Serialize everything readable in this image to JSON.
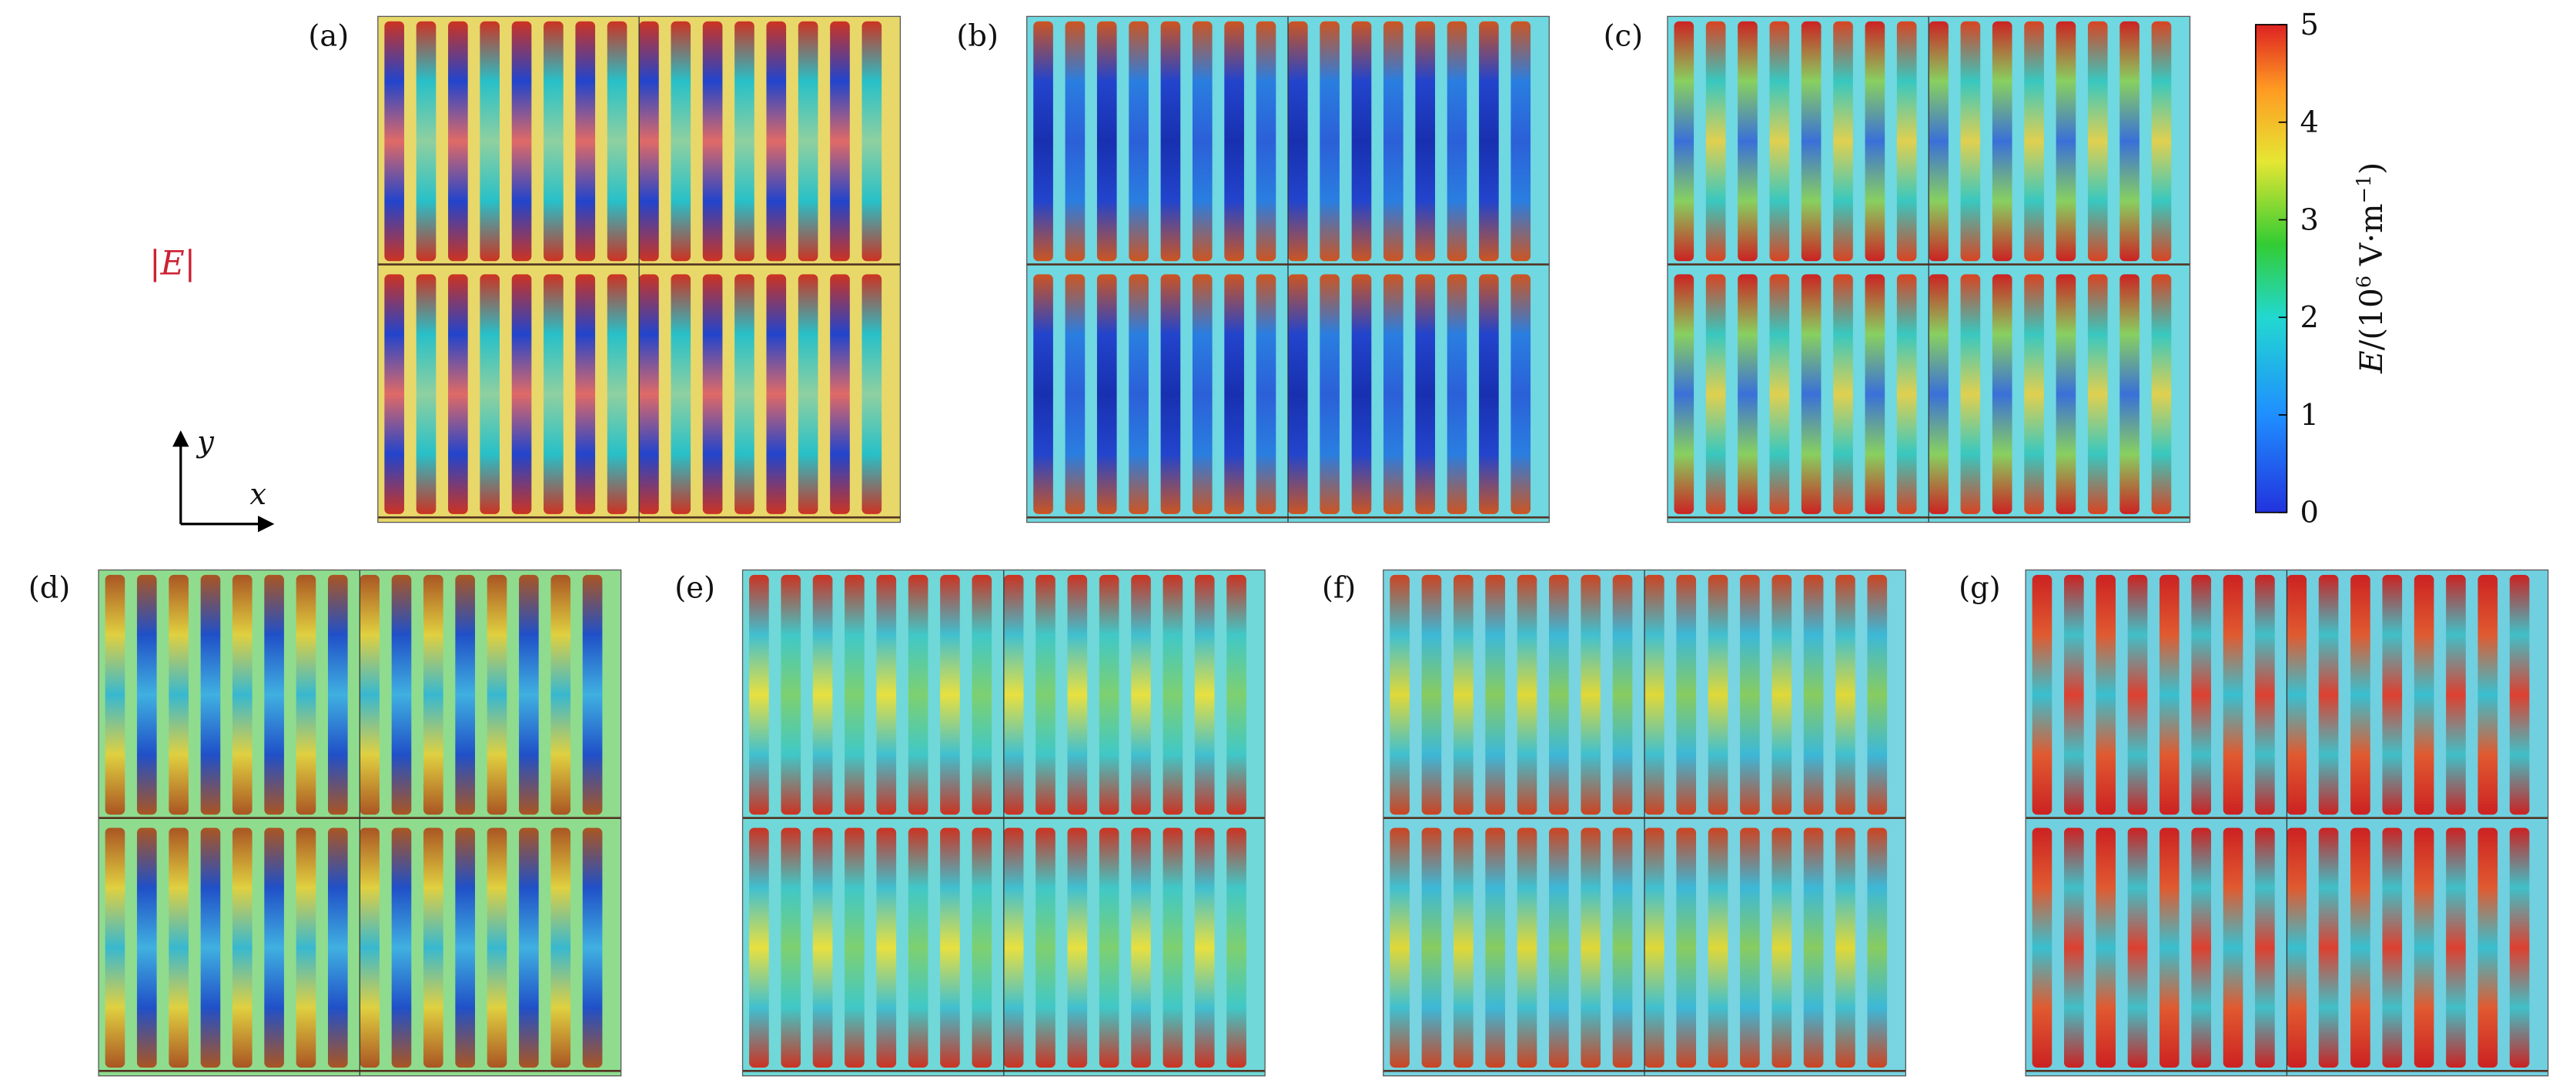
{
  "panels": [
    {
      "label": "(a)"
    },
    {
      "label": "(b)"
    },
    {
      "label": "(c)"
    },
    {
      "label": "(d)"
    },
    {
      "label": "(e)"
    },
    {
      "label": "(f)"
    },
    {
      "label": "(g)"
    }
  ],
  "field_label": "|E|",
  "axes": {
    "y": "y",
    "x": "x"
  },
  "colorbar": {
    "lim": [
      0,
      5
    ],
    "ticks": [
      0,
      1,
      2,
      3,
      4,
      5
    ],
    "label": [
      "E",
      "/(10",
      "6",
      " V·m",
      "−1",
      ")"
    ]
  }
}
